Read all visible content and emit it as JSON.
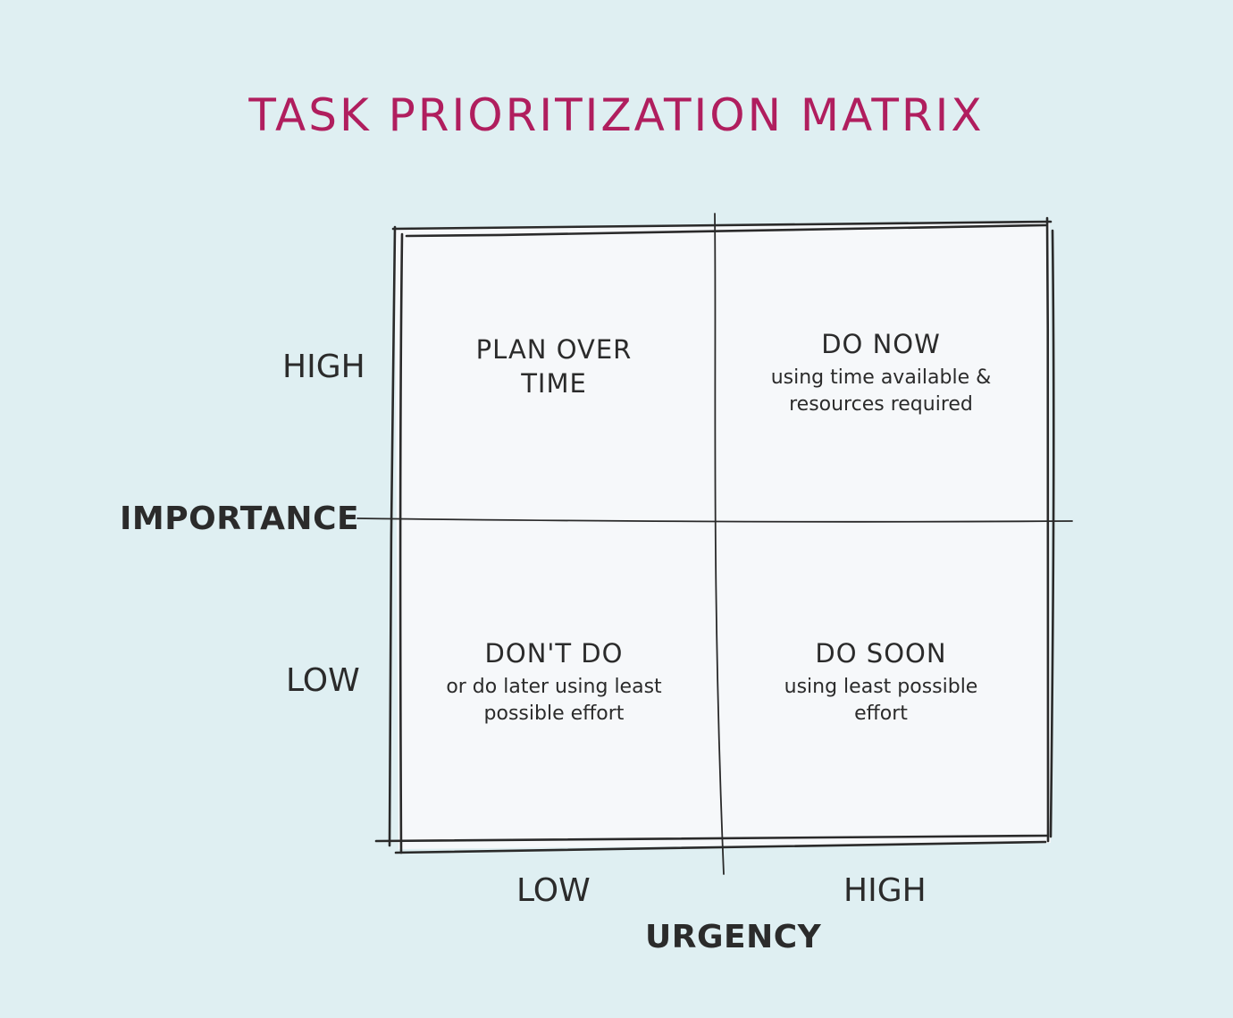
{
  "title": "TASK PRIORITIZATION MATRIX",
  "y_axis": {
    "label": "IMPORTANCE",
    "high": "HIGH",
    "low": "LOW"
  },
  "x_axis": {
    "label": "URGENCY",
    "low": "LOW",
    "high": "HIGH"
  },
  "quadrants": {
    "high_importance_low_urgency": {
      "heading": "PLAN OVER TIME",
      "note": ""
    },
    "high_importance_high_urgency": {
      "heading": "DO NOW",
      "note": "using time available & resources required"
    },
    "low_importance_low_urgency": {
      "heading": "DON'T DO",
      "note": "or do later using least possible effort"
    },
    "low_importance_high_urgency": {
      "heading": "DO SOON",
      "note": "using least possible effort"
    }
  },
  "colors": {
    "background": "#dfeff2",
    "panel": "#f6f8fa",
    "title": "#b01e5e",
    "ink": "#2a2a2a"
  }
}
